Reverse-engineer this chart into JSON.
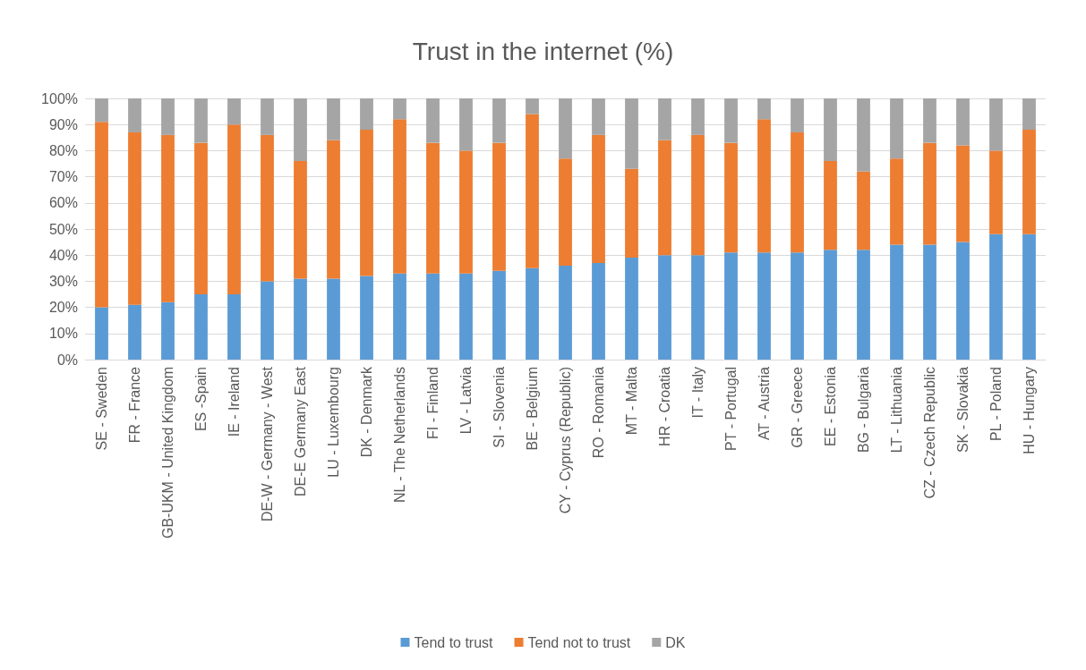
{
  "chart_data": {
    "type": "bar",
    "stacked": true,
    "title": "Trust in the internet (%)",
    "categories": [
      "SE - Sweden",
      "FR - France",
      "GB-UKM - United Kingdom",
      "ES -Spain",
      "IE - Ireland",
      "DE-W - Germany - West",
      "DE-E Germany East",
      "LU - Luxembourg",
      "DK - Denmark",
      "NL - The Netherlands",
      "FI - Finland",
      "LV - Latvia",
      "SI - Slovenia",
      "BE - Belgium",
      "CY - Cyprus (Republic)",
      "RO - Romania",
      "MT - Malta",
      "HR - Croatia",
      "IT - Italy",
      "PT - Portugal",
      "AT - Austria",
      "GR - Greece",
      "EE - Estonia",
      "BG - Bulgaria",
      "LT - Lithuania",
      "CZ - Czech Republic",
      "SK - Slovakia",
      "PL - Poland",
      "HU - Hungary"
    ],
    "series": [
      {
        "name": "Tend to trust",
        "color": "#5b9bd5",
        "values": [
          20,
          21,
          22,
          25,
          25,
          30,
          31,
          31,
          32,
          33,
          33,
          33,
          34,
          35,
          36,
          37,
          39,
          40,
          40,
          41,
          41,
          41,
          42,
          42,
          44,
          44,
          45,
          48,
          48
        ]
      },
      {
        "name": "Tend not to trust",
        "color": "#ed7d31",
        "values": [
          71,
          66,
          64,
          58,
          65,
          56,
          45,
          53,
          56,
          59,
          50,
          47,
          49,
          59,
          41,
          49,
          34,
          44,
          46,
          42,
          51,
          46,
          34,
          30,
          33,
          39,
          37,
          32,
          40
        ]
      },
      {
        "name": "DK",
        "color": "#a5a5a5",
        "values": [
          9,
          13,
          14,
          17,
          10,
          14,
          24,
          16,
          12,
          8,
          17,
          20,
          17,
          6,
          23,
          14,
          27,
          16,
          14,
          17,
          8,
          13,
          24,
          28,
          23,
          17,
          18,
          20,
          12
        ]
      }
    ],
    "ylim": [
      0,
      100
    ],
    "yticks": [
      {
        "value": 0,
        "label": "0%"
      },
      {
        "value": 10,
        "label": "10%"
      },
      {
        "value": 20,
        "label": "20%"
      },
      {
        "value": 30,
        "label": "30%"
      },
      {
        "value": 40,
        "label": "40%"
      },
      {
        "value": 50,
        "label": "50%"
      },
      {
        "value": 60,
        "label": "60%"
      },
      {
        "value": 70,
        "label": "70%"
      },
      {
        "value": 80,
        "label": "80%"
      },
      {
        "value": 90,
        "label": "90%"
      },
      {
        "value": 100,
        "label": "100%"
      }
    ],
    "grid": "y",
    "legend": "bottom"
  }
}
